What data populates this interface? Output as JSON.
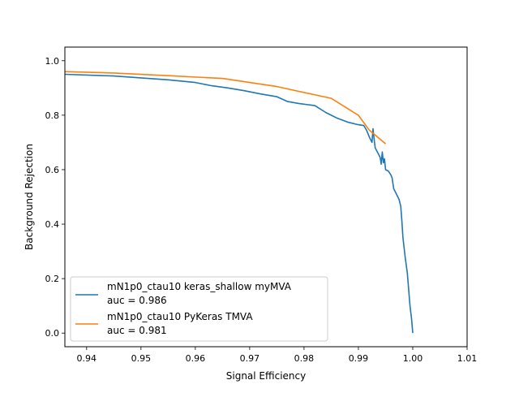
{
  "chart_data": {
    "type": "line",
    "xlabel": "Signal Efficiency",
    "ylabel": "Background Rejection",
    "xlim": [
      0.936,
      1.01
    ],
    "ylim": [
      -0.05,
      1.05
    ],
    "xticks": [
      0.94,
      0.95,
      0.96,
      0.97,
      0.98,
      0.99,
      1.0,
      1.01
    ],
    "xtick_labels": [
      "0.94",
      "0.95",
      "0.96",
      "0.97",
      "0.98",
      "0.99",
      "1.00",
      "1.01"
    ],
    "yticks": [
      0.0,
      0.2,
      0.4,
      0.6,
      0.8,
      1.0
    ],
    "ytick_labels": [
      "0.0",
      "0.2",
      "0.4",
      "0.6",
      "0.8",
      "1.0"
    ],
    "grid": false,
    "legend_position": "lower-left",
    "series": [
      {
        "name": "mN1p0_ctau10 keras_shallow myMVA",
        "auc_label": "auc = 0.986",
        "color": "#1f77b4",
        "x": [
          0.936,
          0.945,
          0.95,
          0.955,
          0.96,
          0.963,
          0.966,
          0.969,
          0.972,
          0.975,
          0.977,
          0.979,
          0.982,
          0.984,
          0.985,
          0.986,
          0.988,
          0.99,
          0.991,
          0.9915,
          0.992,
          0.9925,
          0.9927,
          0.9929,
          0.9931,
          0.9935,
          0.994,
          0.9942,
          0.9944,
          0.9946,
          0.9948,
          0.995,
          0.9955,
          0.996,
          0.9962,
          0.9965,
          0.997,
          0.9975,
          0.9978,
          0.998,
          0.9982,
          0.9986,
          0.999,
          0.9995,
          0.9998,
          1.0
        ],
        "y": [
          0.95,
          0.944,
          0.937,
          0.93,
          0.92,
          0.908,
          0.9,
          0.89,
          0.878,
          0.868,
          0.85,
          0.843,
          0.835,
          0.81,
          0.8,
          0.79,
          0.775,
          0.765,
          0.762,
          0.745,
          0.72,
          0.7,
          0.75,
          0.71,
          0.68,
          0.665,
          0.645,
          0.62,
          0.665,
          0.625,
          0.64,
          0.6,
          0.595,
          0.58,
          0.57,
          0.53,
          0.51,
          0.49,
          0.465,
          0.41,
          0.35,
          0.28,
          0.22,
          0.1,
          0.05,
          0.0
        ]
      },
      {
        "name": "mN1p0_ctau10 PyKeras TMVA",
        "auc_label": "auc = 0.981",
        "color": "#ff7f0e",
        "x": [
          0.936,
          0.945,
          0.955,
          0.965,
          0.975,
          0.985,
          0.99,
          0.992,
          0.995
        ],
        "y": [
          0.96,
          0.955,
          0.945,
          0.935,
          0.905,
          0.862,
          0.8,
          0.745,
          0.695
        ]
      }
    ]
  }
}
